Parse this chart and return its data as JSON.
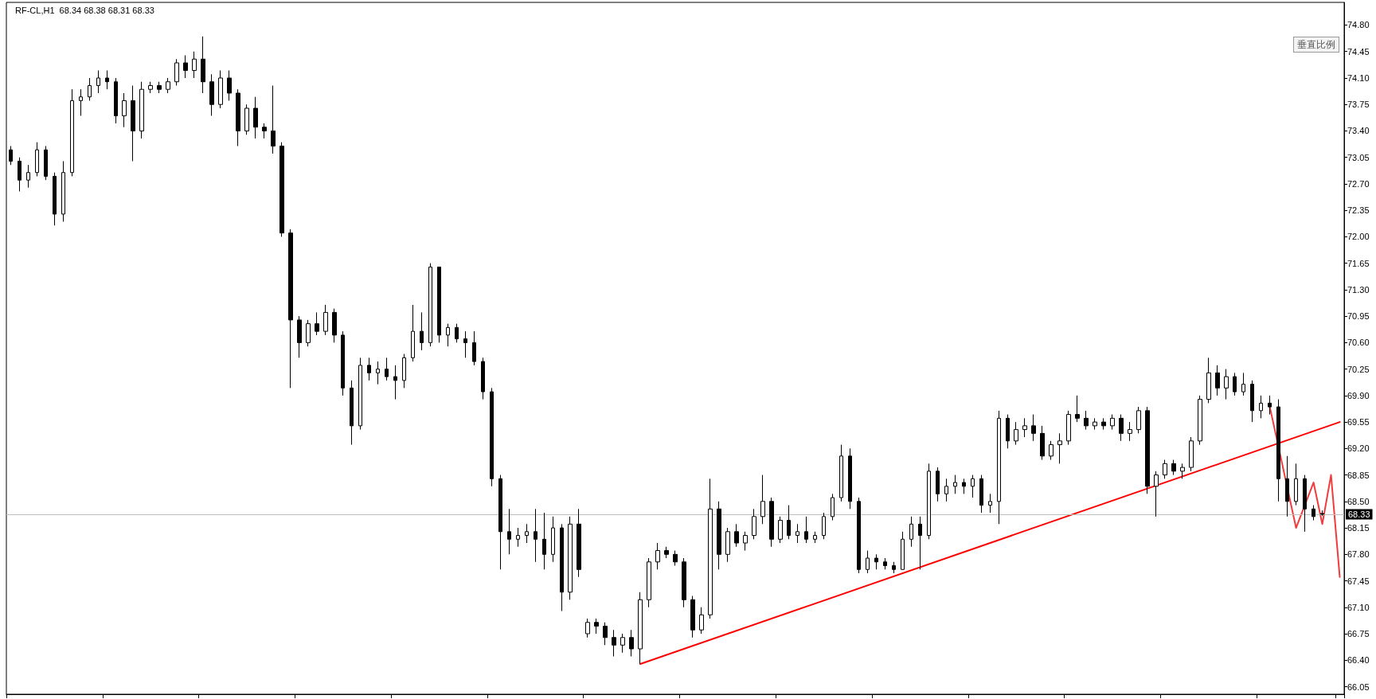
{
  "chart_data": {
    "type": "candlestick",
    "title": "RF-CL,H1  68.34 68.38 68.31 68.33",
    "annotations": [
      "垂直比例"
    ],
    "categories": [
      null,
      null,
      null,
      null,
      null,
      null,
      null,
      null,
      null,
      null,
      null,
      null,
      null,
      null,
      null,
      null,
      null,
      null,
      null,
      null,
      null,
      null,
      null,
      null,
      null,
      null,
      null,
      null,
      null,
      null,
      null,
      null,
      null,
      null,
      null,
      null,
      null,
      null,
      null,
      null,
      null,
      null,
      null,
      null,
      null,
      null,
      null,
      null,
      null,
      null,
      null,
      null,
      null,
      null,
      null,
      null,
      null,
      null,
      null,
      null,
      null,
      null,
      null,
      null,
      null,
      null,
      null,
      null,
      null,
      null,
      null,
      null,
      null,
      null,
      null,
      null,
      null,
      null,
      null,
      null,
      null,
      null,
      null,
      null,
      null,
      null,
      null,
      null,
      null,
      null,
      null,
      null,
      null,
      null,
      null,
      null,
      null,
      null,
      null,
      null,
      null,
      null,
      null,
      null,
      null,
      null,
      null,
      null,
      null,
      null,
      null,
      null,
      null,
      null,
      null,
      null,
      null,
      null,
      null,
      null,
      null,
      null,
      null,
      null,
      null,
      null,
      null,
      null,
      null,
      null,
      null,
      null,
      null,
      null,
      null,
      null,
      null,
      null,
      null,
      null,
      null,
      null,
      null,
      null,
      null,
      null,
      null,
      null,
      null,
      null,
      null,
      null,
      null
    ],
    "series": [
      {
        "color": "#000000",
        "ohlc": [
          [
            73.15,
            73.2,
            72.95,
            73.0
          ],
          [
            73.0,
            73.05,
            72.6,
            72.75
          ],
          [
            72.75,
            72.95,
            72.65,
            72.85
          ],
          [
            72.85,
            73.25,
            72.8,
            73.15
          ],
          [
            73.15,
            73.2,
            72.75,
            72.8
          ],
          [
            72.8,
            72.85,
            72.15,
            72.3
          ],
          [
            72.3,
            73.0,
            72.2,
            72.85
          ],
          [
            72.85,
            73.95,
            72.8,
            73.8
          ],
          [
            73.8,
            73.95,
            73.6,
            73.85
          ],
          [
            73.85,
            74.1,
            73.8,
            74.0
          ],
          [
            74.0,
            74.2,
            73.9,
            74.1
          ],
          [
            74.1,
            74.2,
            73.95,
            74.05
          ],
          [
            74.05,
            74.1,
            73.5,
            73.6
          ],
          [
            73.6,
            73.9,
            73.45,
            73.8
          ],
          [
            73.8,
            74.0,
            73.0,
            73.4
          ],
          [
            73.4,
            74.05,
            73.3,
            73.95
          ],
          [
            73.95,
            74.05,
            73.9,
            74.0
          ],
          [
            74.0,
            74.05,
            73.9,
            73.95
          ],
          [
            73.95,
            74.1,
            73.9,
            74.05
          ],
          [
            74.05,
            74.35,
            74.0,
            74.3
          ],
          [
            74.3,
            74.4,
            74.1,
            74.2
          ],
          [
            74.2,
            74.45,
            74.1,
            74.35
          ],
          [
            74.35,
            74.65,
            73.9,
            74.05
          ],
          [
            74.05,
            74.15,
            73.6,
            73.75
          ],
          [
            73.75,
            74.2,
            73.7,
            74.1
          ],
          [
            74.1,
            74.2,
            73.8,
            73.9
          ],
          [
            73.9,
            73.95,
            73.2,
            73.4
          ],
          [
            73.4,
            73.75,
            73.35,
            73.7
          ],
          [
            73.7,
            73.85,
            73.3,
            73.45
          ],
          [
            73.45,
            73.5,
            73.3,
            73.4
          ],
          [
            73.4,
            74.0,
            73.1,
            73.2
          ],
          [
            73.2,
            73.25,
            72.0,
            72.05
          ],
          [
            72.05,
            72.1,
            70.0,
            70.9
          ],
          [
            70.9,
            70.95,
            70.4,
            70.6
          ],
          [
            70.6,
            70.9,
            70.55,
            70.85
          ],
          [
            70.85,
            71.0,
            70.7,
            70.75
          ],
          [
            70.75,
            71.1,
            70.7,
            71.0
          ],
          [
            71.0,
            71.05,
            70.6,
            70.7
          ],
          [
            70.7,
            70.75,
            69.9,
            70.0
          ],
          [
            70.0,
            70.1,
            69.25,
            69.5
          ],
          [
            69.5,
            70.4,
            69.45,
            70.3
          ],
          [
            70.3,
            70.4,
            70.1,
            70.2
          ],
          [
            70.2,
            70.35,
            70.05,
            70.25
          ],
          [
            70.25,
            70.4,
            70.1,
            70.15
          ],
          [
            70.15,
            70.3,
            69.85,
            70.1
          ],
          [
            70.1,
            70.45,
            70.0,
            70.4
          ],
          [
            70.4,
            71.1,
            70.35,
            70.75
          ],
          [
            70.75,
            71.0,
            70.5,
            70.6
          ],
          [
            70.6,
            71.65,
            70.55,
            71.6
          ],
          [
            71.6,
            71.6,
            70.6,
            70.7
          ],
          [
            70.7,
            70.85,
            70.55,
            70.8
          ],
          [
            70.8,
            70.85,
            70.6,
            70.65
          ],
          [
            70.65,
            70.75,
            70.4,
            70.6
          ],
          [
            70.6,
            70.75,
            70.3,
            70.35
          ],
          [
            70.35,
            70.4,
            69.85,
            69.95
          ],
          [
            69.95,
            70.0,
            68.7,
            68.8
          ],
          [
            68.8,
            68.85,
            67.6,
            68.1
          ],
          [
            68.1,
            68.4,
            67.8,
            68.0
          ],
          [
            68.0,
            68.15,
            67.9,
            68.05
          ],
          [
            68.05,
            68.2,
            67.95,
            68.1
          ],
          [
            68.1,
            68.4,
            67.7,
            68.0
          ],
          [
            68.0,
            68.35,
            67.6,
            67.8
          ],
          [
            67.8,
            68.3,
            67.7,
            68.15
          ],
          [
            68.15,
            68.2,
            67.05,
            67.3
          ],
          [
            67.3,
            68.3,
            67.2,
            68.2
          ],
          [
            68.2,
            68.4,
            67.5,
            67.6
          ],
          [
            66.75,
            66.95,
            66.7,
            66.9
          ],
          [
            66.9,
            66.95,
            66.75,
            66.85
          ],
          [
            66.85,
            66.9,
            66.6,
            66.7
          ],
          [
            66.7,
            66.8,
            66.45,
            66.6
          ],
          [
            66.6,
            66.75,
            66.5,
            66.7
          ],
          [
            66.7,
            66.8,
            66.45,
            66.55
          ],
          [
            66.55,
            67.3,
            66.35,
            67.2
          ],
          [
            67.2,
            67.75,
            67.1,
            67.7
          ],
          [
            67.7,
            67.95,
            67.6,
            67.85
          ],
          [
            67.85,
            67.9,
            67.75,
            67.8
          ],
          [
            67.8,
            67.85,
            67.65,
            67.7
          ],
          [
            67.7,
            67.75,
            67.1,
            67.2
          ],
          [
            67.2,
            67.25,
            66.7,
            66.8
          ],
          [
            66.8,
            67.1,
            66.75,
            67.0
          ],
          [
            67.0,
            68.8,
            66.95,
            68.4
          ],
          [
            68.4,
            68.5,
            67.6,
            67.8
          ],
          [
            67.8,
            68.15,
            67.7,
            68.1
          ],
          [
            68.1,
            68.2,
            67.9,
            67.95
          ],
          [
            67.95,
            68.1,
            67.85,
            68.05
          ],
          [
            68.05,
            68.4,
            68.0,
            68.3
          ],
          [
            68.3,
            68.85,
            68.2,
            68.5
          ],
          [
            68.5,
            68.55,
            67.9,
            68.0
          ],
          [
            68.0,
            68.3,
            67.95,
            68.25
          ],
          [
            68.25,
            68.45,
            68.0,
            68.05
          ],
          [
            68.05,
            68.2,
            67.95,
            68.1
          ],
          [
            68.1,
            68.3,
            67.95,
            68.0
          ],
          [
            68.0,
            68.1,
            67.95,
            68.05
          ],
          [
            68.05,
            68.35,
            68.0,
            68.3
          ],
          [
            68.3,
            68.6,
            68.25,
            68.55
          ],
          [
            68.55,
            69.25,
            68.5,
            69.1
          ],
          [
            69.1,
            69.2,
            68.4,
            68.5
          ],
          [
            68.5,
            68.55,
            67.55,
            67.6
          ],
          [
            67.6,
            67.85,
            67.55,
            67.75
          ],
          [
            67.75,
            67.8,
            67.6,
            67.7
          ],
          [
            67.7,
            67.75,
            67.6,
            67.65
          ],
          [
            67.65,
            67.7,
            67.55,
            67.6
          ],
          [
            67.6,
            68.1,
            67.6,
            68.0
          ],
          [
            68.0,
            68.3,
            67.9,
            68.2
          ],
          [
            68.2,
            68.3,
            67.6,
            68.05
          ],
          [
            68.05,
            69.0,
            68.0,
            68.9
          ],
          [
            68.9,
            68.95,
            68.5,
            68.6
          ],
          [
            68.6,
            68.8,
            68.5,
            68.7
          ],
          [
            68.7,
            68.85,
            68.6,
            68.75
          ],
          [
            68.75,
            68.8,
            68.6,
            68.7
          ],
          [
            68.7,
            68.85,
            68.55,
            68.8
          ],
          [
            68.8,
            68.85,
            68.35,
            68.45
          ],
          [
            68.45,
            68.6,
            68.35,
            68.5
          ],
          [
            68.5,
            69.7,
            68.2,
            69.6
          ],
          [
            69.6,
            69.65,
            69.2,
            69.3
          ],
          [
            69.3,
            69.55,
            69.25,
            69.45
          ],
          [
            69.45,
            69.6,
            69.35,
            69.5
          ],
          [
            69.5,
            69.65,
            69.3,
            69.4
          ],
          [
            69.4,
            69.5,
            69.05,
            69.1
          ],
          [
            69.1,
            69.3,
            69.05,
            69.25
          ],
          [
            69.25,
            69.4,
            69.0,
            69.3
          ],
          [
            69.3,
            69.7,
            69.25,
            69.65
          ],
          [
            69.65,
            69.9,
            69.55,
            69.6
          ],
          [
            69.6,
            69.7,
            69.45,
            69.5
          ],
          [
            69.5,
            69.6,
            69.45,
            69.55
          ],
          [
            69.55,
            69.6,
            69.45,
            69.5
          ],
          [
            69.5,
            69.65,
            69.45,
            69.6
          ],
          [
            69.6,
            69.65,
            69.3,
            69.4
          ],
          [
            69.4,
            69.55,
            69.3,
            69.45
          ],
          [
            69.45,
            69.75,
            69.4,
            69.7
          ],
          [
            69.7,
            69.75,
            68.6,
            68.7
          ],
          [
            68.7,
            68.9,
            68.3,
            68.85
          ],
          [
            68.85,
            69.05,
            68.8,
            69.0
          ],
          [
            69.0,
            69.05,
            68.85,
            68.9
          ],
          [
            68.9,
            69.0,
            68.8,
            68.95
          ],
          [
            68.95,
            69.35,
            68.9,
            69.3
          ],
          [
            69.3,
            69.9,
            69.25,
            69.85
          ],
          [
            69.85,
            70.4,
            69.8,
            70.2
          ],
          [
            70.2,
            70.3,
            69.9,
            70.0
          ],
          [
            70.0,
            70.25,
            69.85,
            70.15
          ],
          [
            70.15,
            70.2,
            69.9,
            69.95
          ],
          [
            69.95,
            70.2,
            69.9,
            70.05
          ],
          [
            70.05,
            70.1,
            69.55,
            69.7
          ],
          [
            69.7,
            69.9,
            69.6,
            69.8
          ],
          [
            69.8,
            69.9,
            69.65,
            69.75
          ],
          [
            69.75,
            69.85,
            68.5,
            68.8
          ],
          [
            68.8,
            69.1,
            68.3,
            68.5
          ],
          [
            68.5,
            69.0,
            68.45,
            68.8
          ],
          [
            68.8,
            68.85,
            68.1,
            68.4
          ],
          [
            68.4,
            68.45,
            68.25,
            68.3
          ],
          [
            68.34,
            68.38,
            68.31,
            68.33
          ],
          null,
          null
        ]
      },
      {
        "type": "line",
        "color": "#ff0000",
        "values": [
          null,
          null,
          null,
          null,
          null,
          null,
          null,
          null,
          null,
          null,
          null,
          null,
          null,
          null,
          null,
          null,
          null,
          null,
          null,
          null,
          null,
          null,
          null,
          null,
          null,
          null,
          null,
          null,
          null,
          null,
          null,
          null,
          null,
          null,
          null,
          null,
          null,
          null,
          null,
          null,
          null,
          null,
          null,
          null,
          null,
          null,
          null,
          null,
          null,
          null,
          null,
          null,
          null,
          null,
          null,
          null,
          null,
          null,
          null,
          null,
          null,
          null,
          null,
          null,
          null,
          null,
          null,
          null,
          null,
          null,
          null,
          null,
          66.35,
          null,
          null,
          null,
          null,
          null,
          null,
          null,
          null,
          null,
          null,
          null,
          null,
          null,
          null,
          null,
          null,
          null,
          null,
          null,
          null,
          null,
          null,
          null,
          null,
          null,
          null,
          null,
          null,
          null,
          null,
          null,
          null,
          null,
          null,
          null,
          null,
          null,
          null,
          null,
          null,
          null,
          null,
          null,
          null,
          null,
          null,
          null,
          null,
          null,
          null,
          null,
          null,
          null,
          null,
          null,
          null,
          null,
          null,
          null,
          null,
          null,
          null,
          null,
          null,
          null,
          null,
          null,
          null,
          null,
          null,
          null,
          null,
          null,
          null,
          null,
          null,
          null,
          null,
          null,
          69.55
        ]
      },
      {
        "type": "line",
        "color": "#f03c3c",
        "values": [
          null,
          null,
          null,
          null,
          null,
          null,
          null,
          null,
          null,
          null,
          null,
          null,
          null,
          null,
          null,
          null,
          null,
          null,
          null,
          null,
          null,
          null,
          null,
          null,
          null,
          null,
          null,
          null,
          null,
          null,
          null,
          null,
          null,
          null,
          null,
          null,
          null,
          null,
          null,
          null,
          null,
          null,
          null,
          null,
          null,
          null,
          null,
          null,
          null,
          null,
          null,
          null,
          null,
          null,
          null,
          null,
          null,
          null,
          null,
          null,
          null,
          null,
          null,
          null,
          null,
          null,
          null,
          null,
          null,
          null,
          null,
          null,
          null,
          null,
          null,
          null,
          null,
          null,
          null,
          null,
          null,
          null,
          null,
          null,
          null,
          null,
          null,
          null,
          null,
          null,
          null,
          null,
          null,
          null,
          null,
          null,
          null,
          null,
          null,
          null,
          null,
          null,
          null,
          null,
          null,
          null,
          null,
          null,
          null,
          null,
          null,
          null,
          null,
          null,
          null,
          null,
          null,
          null,
          null,
          null,
          null,
          null,
          null,
          null,
          null,
          null,
          null,
          null,
          null,
          null,
          null,
          null,
          null,
          null,
          null,
          null,
          null,
          null,
          null,
          null,
          null,
          null,
          null,
          null,
          69.75,
          null,
          null,
          68.15,
          null,
          68.75,
          68.2,
          68.85,
          67.5
        ]
      }
    ],
    "ref_lines": [
      {
        "axis": "y",
        "value": 68.33,
        "label": "68.33",
        "color": "#c0c0c0"
      }
    ],
    "ylim": [
      65.95,
      75.1
    ],
    "yticks": [
      66.05,
      {
        "value": 66.4,
        "label": "66.40"
      },
      66.75,
      {
        "value": 67.1,
        "label": "67.10"
      },
      67.45,
      {
        "value": 67.8,
        "label": "67.80"
      },
      68.15,
      {
        "value": 68.5,
        "label": "68.50"
      },
      68.85,
      {
        "value": 69.2,
        "label": "69.20"
      },
      69.55,
      {
        "value": 69.9,
        "label": "69.90"
      },
      70.25,
      {
        "value": 70.6,
        "label": "70.60"
      },
      70.95,
      {
        "value": 71.3,
        "label": "71.30"
      },
      71.65,
      {
        "value": 72.0,
        "label": "72.00"
      },
      72.35,
      {
        "value": 72.7,
        "label": "72.70"
      },
      73.05,
      {
        "value": 73.4,
        "label": "73.40"
      },
      73.75,
      {
        "value": 74.1,
        "label": "74.10"
      },
      74.45,
      {
        "value": 74.8,
        "label": "74.80"
      }
    ],
    "tick_labels": "y",
    "grid": false,
    "marker": "none",
    "line_style": "solid"
  }
}
